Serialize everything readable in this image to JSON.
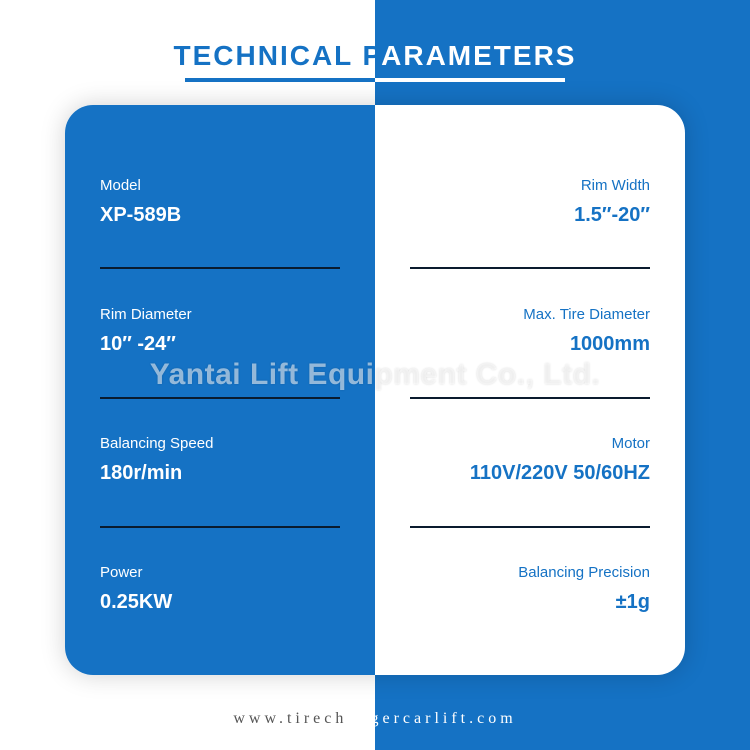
{
  "title": {
    "left": "TECHNICAL P",
    "right": "ARAMETERS"
  },
  "colors": {
    "brand_blue": "#1572c4",
    "white": "#ffffff",
    "divider": "#0a1b2e",
    "footer_gray": "#555555",
    "watermark": "rgba(255,255,255,0.55)"
  },
  "card": {
    "left_rows": [
      {
        "label": "Model",
        "value": "XP-589B"
      },
      {
        "label": "Rim Diameter",
        "value": "10″ -24″"
      },
      {
        "label": "Balancing Speed",
        "value": "180r/min"
      },
      {
        "label": "Power",
        "value": "0.25KW"
      }
    ],
    "right_rows": [
      {
        "label": "Rim Width",
        "value": "1.5″-20″"
      },
      {
        "label": "Max. Tire Diameter",
        "value": "1000mm"
      },
      {
        "label": "Motor",
        "value": "110V/220V 50/60HZ"
      },
      {
        "label": "Balancing Precision",
        "value": "±1g"
      }
    ]
  },
  "watermark": "Yantai Lift Equipment Co., Ltd.",
  "footer": {
    "left": "www.tirech",
    "right": "angercarlift.com"
  }
}
